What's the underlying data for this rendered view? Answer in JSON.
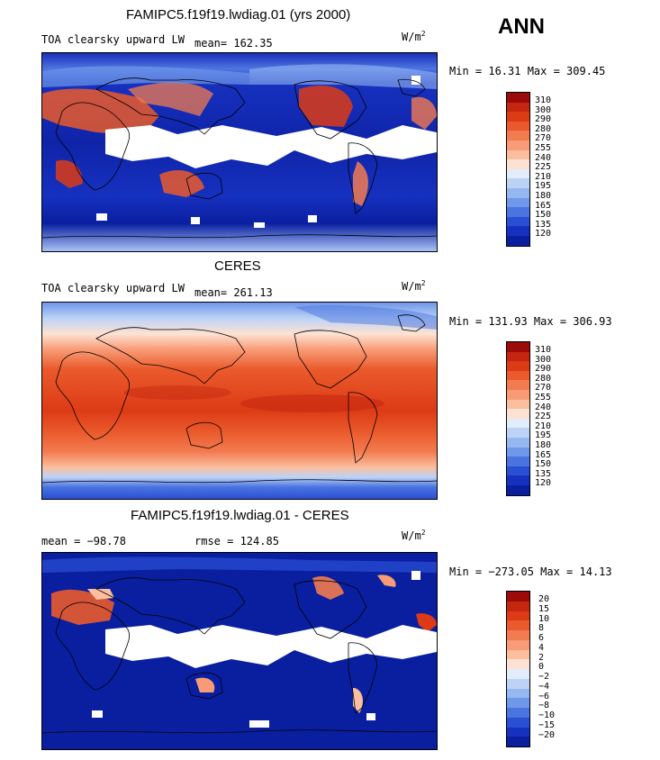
{
  "season": "ANN",
  "panels": [
    {
      "title": "FAMIPC5.f19f19.lwdiag.01 (yrs 2000)",
      "variable": "TOA clearsky upward LW",
      "stat": "mean= 162.35",
      "units": "W/m",
      "units_exp": "2",
      "minmax": "Min =  16.31 Max = 309.45",
      "colorbar_labels": [
        "310",
        "300",
        "290",
        "280",
        "270",
        "255",
        "240",
        "225",
        "210",
        "195",
        "180",
        "165",
        "150",
        "135",
        "120"
      ]
    },
    {
      "title": "CERES",
      "variable": "TOA clearsky upward LW",
      "stat": "mean= 261.13",
      "units": "W/m",
      "units_exp": "2",
      "minmax": "Min = 131.93 Max = 306.93",
      "colorbar_labels": [
        "310",
        "300",
        "290",
        "280",
        "270",
        "255",
        "240",
        "225",
        "210",
        "195",
        "180",
        "165",
        "150",
        "135",
        "120"
      ]
    },
    {
      "title": "FAMIPC5.f19f19.lwdiag.01 - CERES",
      "stat": "mean = −98.78",
      "stat2": "rmse = 124.85",
      "units": "W/m",
      "units_exp": "2",
      "minmax": "Min = −273.05 Max =  14.13",
      "colorbar_labels": [
        "20",
        "15",
        "10",
        "8",
        "6",
        "4",
        "2",
        "0",
        "−2",
        "−4",
        "−6",
        "−8",
        "−10",
        "−15",
        "−20"
      ]
    }
  ],
  "colors": {
    "scale": [
      "#9c0a0a",
      "#c4260f",
      "#dd3b16",
      "#ea5a2c",
      "#f27b50",
      "#f89b76",
      "#fbbf9f",
      "#fde2d3",
      "#e2ecfb",
      "#bcd3f6",
      "#96b8f1",
      "#6f97ea",
      "#4a74e0",
      "#2a4fd4",
      "#1631bf",
      "#0a1fa0"
    ],
    "model_bg": "#0c1aa0",
    "missing": "#ffffff"
  }
}
